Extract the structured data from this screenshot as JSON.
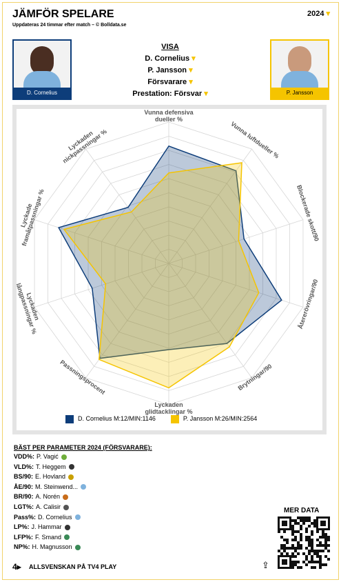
{
  "header": {
    "title": "JÄMFÖR SPELARE",
    "subtitle": "Uppdateras 24 timmar efter match – © Bolldata.se",
    "year": "2024"
  },
  "players": [
    "D. Cornelius",
    "P. Jansson"
  ],
  "selection": {
    "heading": "VISA",
    "player1": "D. Cornelius",
    "player2": "P. Jansson",
    "position": "Försvarare",
    "mode": "Prestation: Försvar"
  },
  "chart_data": {
    "type": "radar",
    "categories": [
      "Vunna defensiva dueller %",
      "Vunna luftdueller %",
      "Blockerade skott/90",
      "Återerövringar/90",
      "Brytningar/90",
      "Lyckaden glidtacklingar %",
      "Passningsprocent",
      "Lyckaden långpassningar %",
      "Lyckade framåtpassningar %",
      "Lyckaden nickpassningar %"
    ],
    "ylim": [
      0,
      100
    ],
    "series": [
      {
        "name": "D. Cornelius M:12/MIN:1146",
        "color": "#0d3d7a",
        "values": [
          83,
          81,
          56,
          84,
          70,
          61,
          83,
          57,
          82,
          49
        ]
      },
      {
        "name": "P. Jansson M:26/MIN:2564",
        "color": "#f5c400",
        "values": [
          64,
          88,
          52,
          67,
          73,
          88,
          84,
          47,
          78,
          45
        ]
      }
    ]
  },
  "best": {
    "heading": "BÄST PER PARAMETER 2024 (FÖRSVARARE):",
    "rows": [
      [
        "VDD%:",
        "P. Vagić"
      ],
      [
        "VLD%:",
        "T. Heggem"
      ],
      [
        "BS/90:",
        "E. Hovland"
      ],
      [
        "ÅE/90:",
        "M. Steinwend..."
      ],
      [
        "BR/90:",
        "A. Norén"
      ],
      [
        "LGT%:",
        "A. Calisir"
      ],
      [
        "Pass%:",
        "D. Cornelius"
      ],
      [
        "LP%:",
        "J. Hammar"
      ],
      [
        "LFP%:",
        "F. Smand"
      ],
      [
        "NP%:",
        "H. Magnusson"
      ]
    ]
  },
  "more": "MER DATA",
  "footer": "ALLSVENSKAN PÅ TV4 PLAY"
}
